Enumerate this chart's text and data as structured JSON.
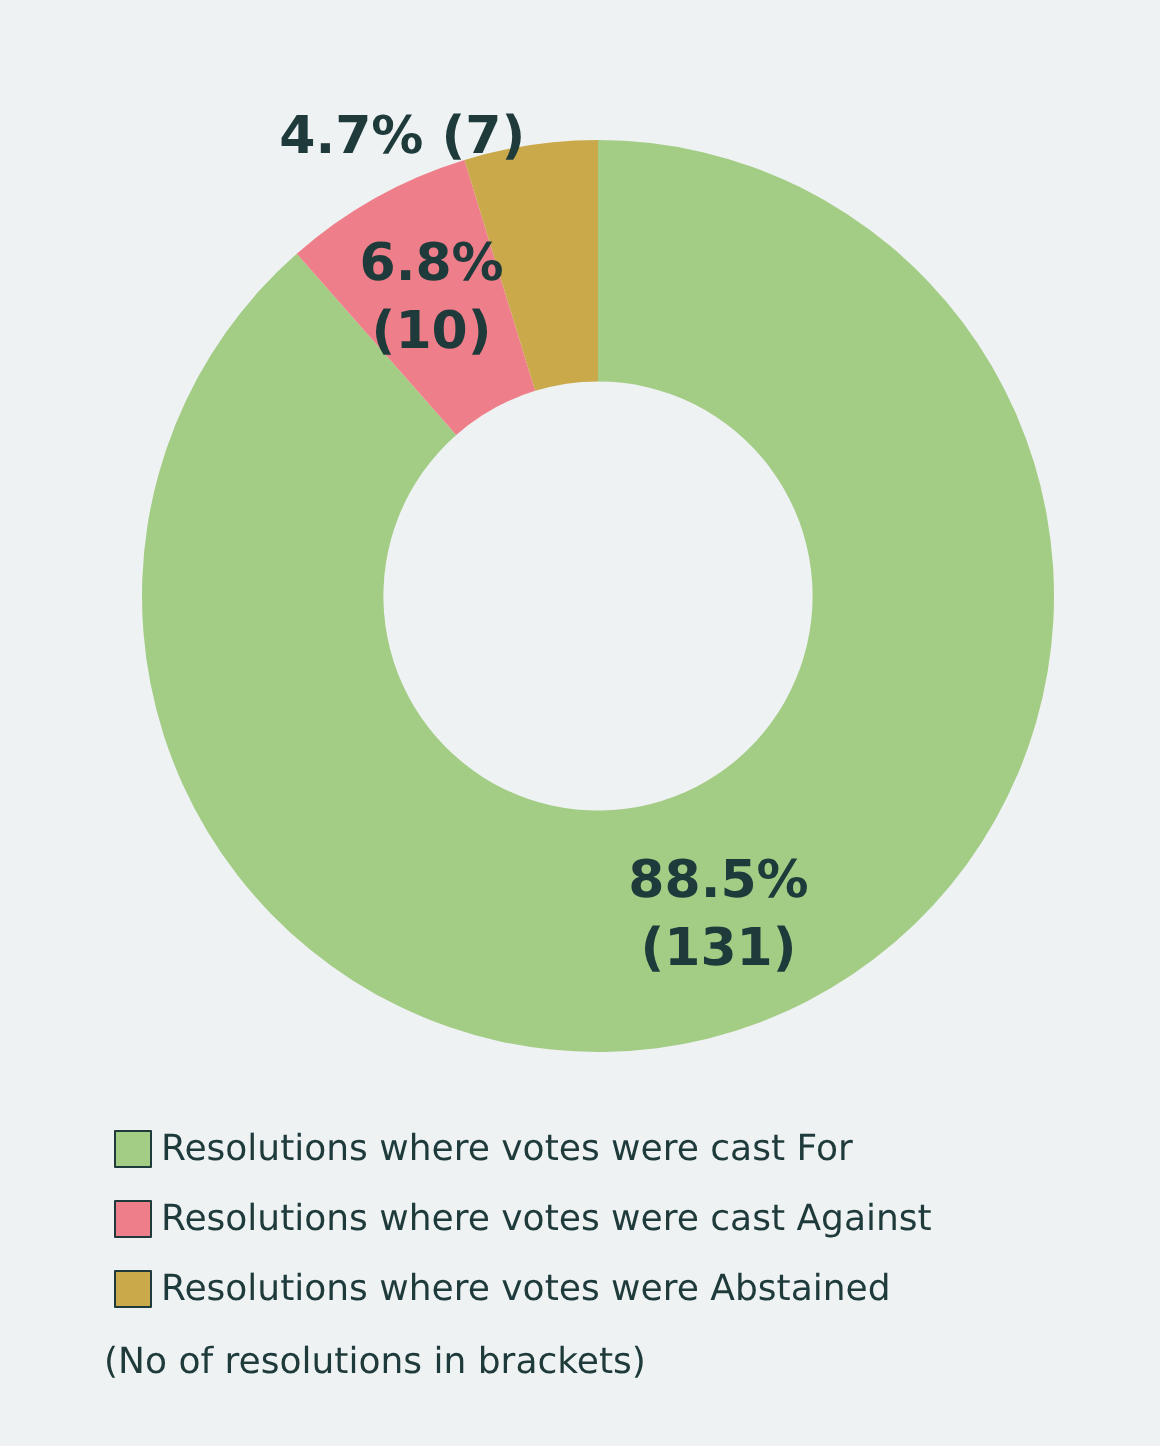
{
  "chart_data": {
    "type": "donut",
    "categories": [
      "Resolutions where votes were cast For",
      "Resolutions where votes were cast Against",
      "Resolutions where votes were Abstained"
    ],
    "values": [
      131,
      10,
      7
    ],
    "colors": [
      "#a3cc85",
      "#ee7f8a",
      "#c9a94a"
    ],
    "value_labels": [
      "88.5%\n(131)",
      "6.8%\n(10)",
      "4.7% (7)"
    ],
    "legend": "bottom",
    "annotations": [
      "(No of resolutions in brackets)"
    ]
  }
}
